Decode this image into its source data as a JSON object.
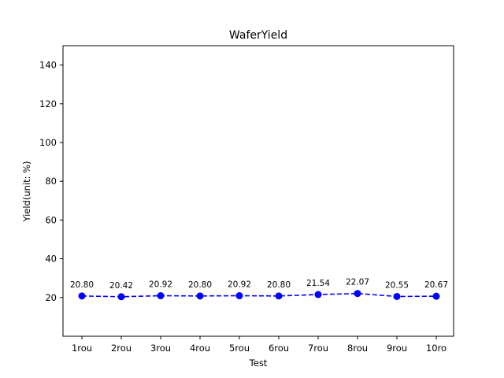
{
  "chart_data": {
    "type": "line",
    "title": "WaferYield",
    "xlabel": "Test",
    "ylabel": "Yield(unit: %)",
    "categories": [
      "1rou",
      "2rou",
      "3rou",
      "4rou",
      "5rou",
      "6rou",
      "7rou",
      "8rou",
      "9rou",
      "10ro"
    ],
    "series": [
      {
        "values": [
          20.8,
          20.42,
          20.92,
          20.8,
          20.92,
          20.8,
          21.54,
          22.07,
          20.55,
          20.67
        ],
        "data_labels": [
          "20.80",
          "20.42",
          "20.92",
          "20.80",
          "20.92",
          "20.80",
          "21.54",
          "22.07",
          "20.55",
          "20.67"
        ],
        "color": "#0000ff",
        "line_style": "dashed",
        "marker": "circle"
      }
    ],
    "ylim": [
      0,
      150
    ],
    "yticks": [
      20,
      40,
      60,
      80,
      100,
      120,
      140
    ],
    "ytick_labels": [
      "20",
      "40",
      "60",
      "80",
      "100",
      "120",
      "140"
    ],
    "grid": false,
    "legend": "none"
  }
}
